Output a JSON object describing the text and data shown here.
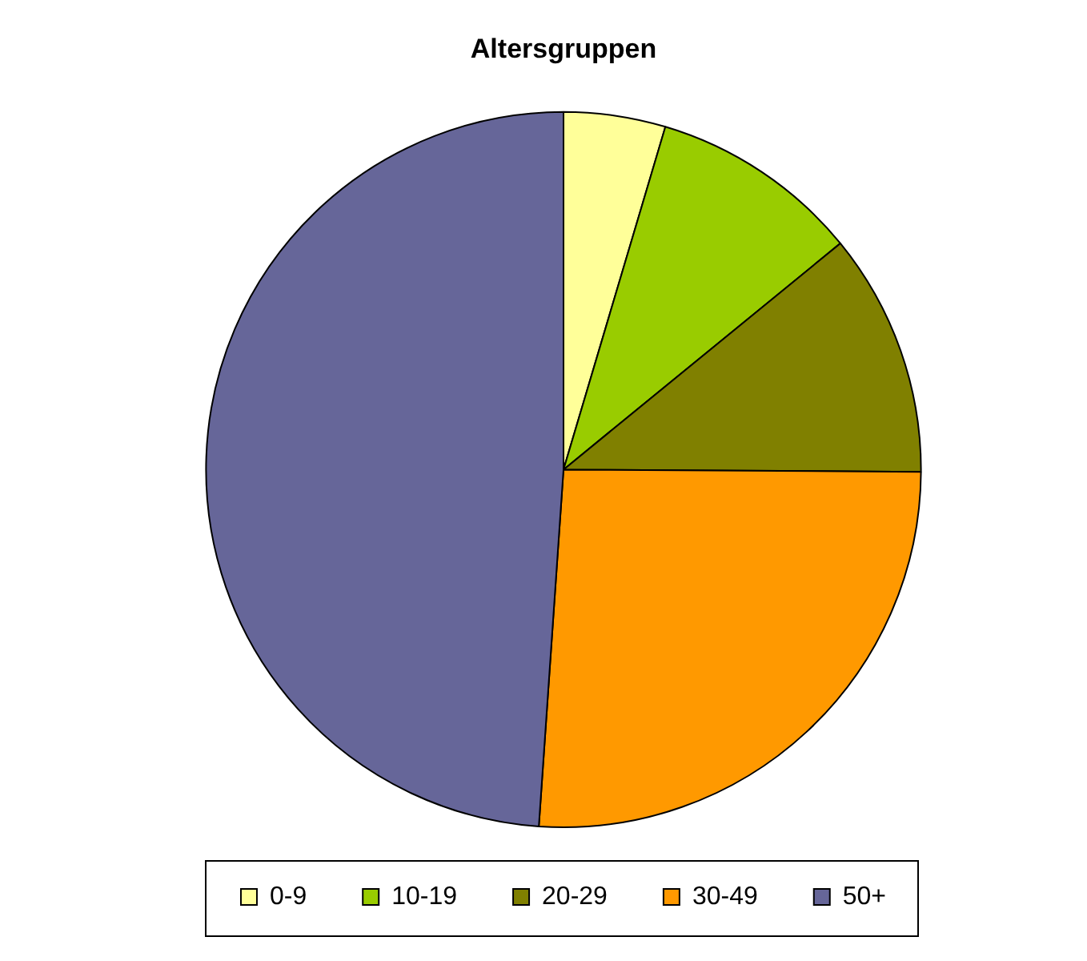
{
  "chart_data": {
    "type": "pie",
    "title": "Altersgruppen",
    "categories": [
      "0-9",
      "10-19",
      "20-29",
      "30-49",
      "50+"
    ],
    "values": [
      4.6,
      9.5,
      11,
      26,
      48.9
    ],
    "colors": [
      "#ffff99",
      "#99cc00",
      "#808000",
      "#ff9900",
      "#666699"
    ],
    "legend": "bottom"
  }
}
